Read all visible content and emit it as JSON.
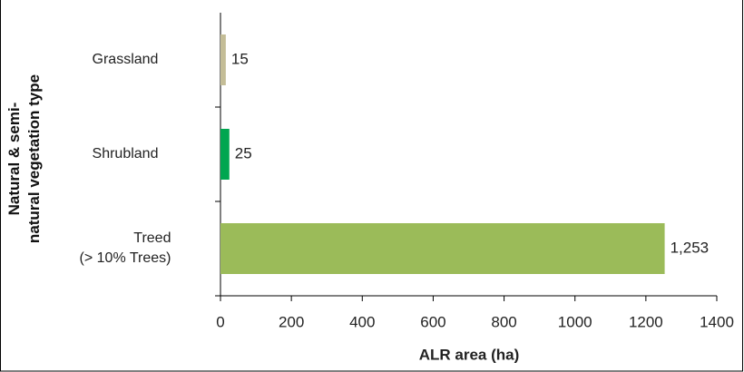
{
  "chart_data": {
    "type": "barh",
    "categories": [
      "Grassland",
      "Shrubland",
      "Treed\n(> 10% Trees)"
    ],
    "values": [
      15,
      25,
      1253
    ],
    "value_labels": [
      "15",
      "25",
      "1,253"
    ],
    "colors": [
      "#c4bd97",
      "#00a650",
      "#9bbb59"
    ],
    "xlabel": "ALR area (ha)",
    "ylabel": "Natural & semi-\nnatural vegetation type",
    "xlim": [
      0,
      1400
    ],
    "xticks": [
      0,
      200,
      400,
      600,
      800,
      1000,
      1200,
      1400
    ],
    "grid": false
  }
}
